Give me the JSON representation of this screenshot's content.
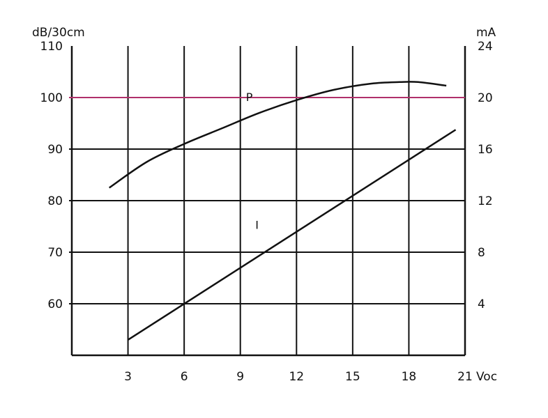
{
  "chart_data": {
    "type": "line",
    "title": "",
    "x_axis": {
      "unit_label": "Voc",
      "range": [
        0,
        21
      ],
      "ticks": [
        3,
        6,
        9,
        12,
        15,
        18,
        21
      ]
    },
    "y_left": {
      "unit_label": "dB/30cm",
      "range": [
        50,
        110
      ],
      "ticks": [
        60,
        70,
        80,
        90,
        100,
        110
      ],
      "highlight_value": 100,
      "highlight_color": "#b0306a"
    },
    "y_right": {
      "unit_label": "mA",
      "range": [
        0,
        24
      ],
      "ticks": [
        4,
        8,
        12,
        16,
        20,
        24
      ]
    },
    "grid": true,
    "series": [
      {
        "name": "P",
        "axis": "left",
        "color": "#111111",
        "x": [
          2,
          4,
          6,
          8,
          10,
          12,
          14,
          16,
          17.5,
          18.5,
          20
        ],
        "y": [
          82.5,
          87.5,
          91,
          94,
          97,
          99.5,
          101.5,
          102.7,
          103,
          103,
          102.3
        ]
      },
      {
        "name": "I",
        "axis": "right",
        "color": "#111111",
        "x": [
          3,
          20.5
        ],
        "y": [
          1.2,
          17.5
        ]
      }
    ]
  }
}
